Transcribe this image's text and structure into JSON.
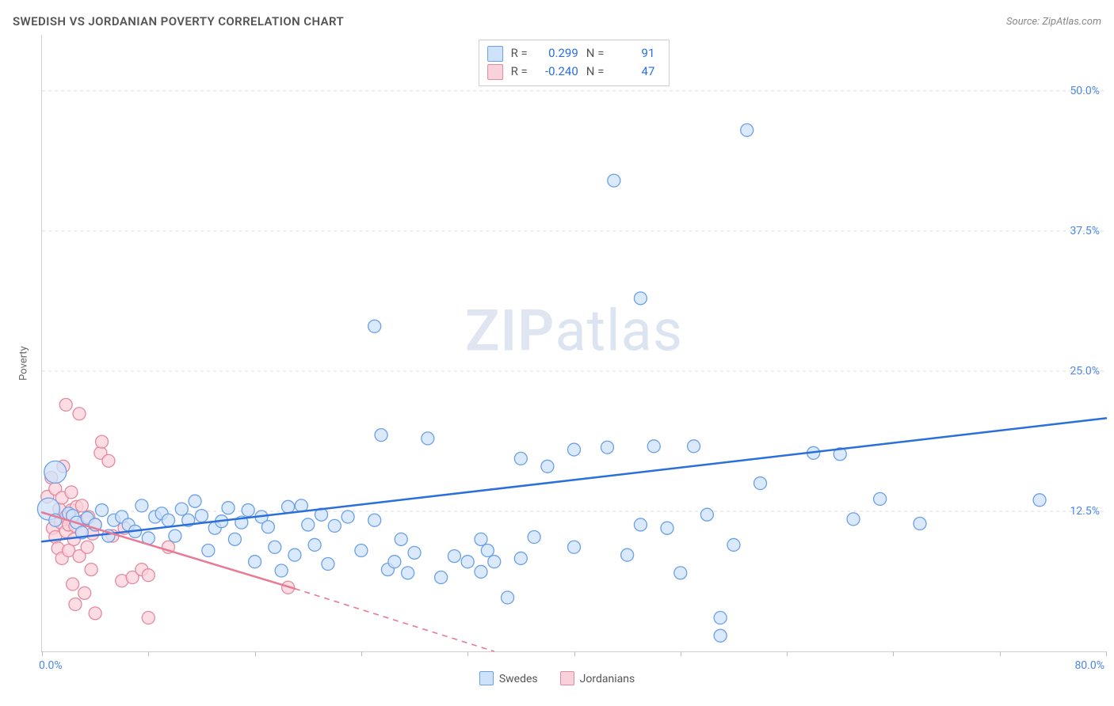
{
  "title": "SWEDISH VS JORDANIAN POVERTY CORRELATION CHART",
  "source_prefix": "Source: ",
  "source_name": "ZipAtlas.com",
  "ylabel": "Poverty",
  "watermark_a": "ZIP",
  "watermark_b": "atlas",
  "chart": {
    "type": "scatter",
    "background_color": "#ffffff",
    "grid_color": "#dcdcdc",
    "axis_color": "#d0d0d0",
    "xlim": [
      0,
      80
    ],
    "ylim": [
      0,
      55
    ],
    "x_origin_label": "0.0%",
    "x_max_label": "80.0%",
    "x_ticks": [
      0,
      8,
      16,
      24,
      32,
      40,
      48,
      56,
      64,
      72,
      80
    ],
    "y_gridlines": [
      {
        "value": 12.5,
        "label": "12.5%"
      },
      {
        "value": 25.0,
        "label": "25.0%"
      },
      {
        "value": 37.5,
        "label": "37.5%"
      },
      {
        "value": 50.0,
        "label": "50.0%"
      }
    ],
    "label_color": "#4a86e8",
    "label_fontsize": 14,
    "marker_radius": 8,
    "marker_radius_large": 14,
    "marker_stroke_width": 1.3,
    "line_width": 2.5,
    "series": {
      "swedes": {
        "label": "Swedes",
        "fill": "#cfe2fb",
        "stroke": "#6aa0e6",
        "fill_opacity": 0.75,
        "R_label": "R =",
        "R": "0.299",
        "N_label": "N =",
        "N": "91",
        "trend": {
          "color": "#2a6fdb",
          "x1": 0,
          "y1": 9.8,
          "x2": 80,
          "y2": 20.8,
          "dash": false
        },
        "points": [
          {
            "x": 1,
            "y": 16,
            "r": 14
          },
          {
            "x": 0.5,
            "y": 12.7,
            "r": 14
          },
          {
            "x": 1,
            "y": 11.7
          },
          {
            "x": 2,
            "y": 12.3
          },
          {
            "x": 2.3,
            "y": 12.1
          },
          {
            "x": 2.6,
            "y": 11.5
          },
          {
            "x": 3,
            "y": 10.6
          },
          {
            "x": 3.4,
            "y": 11.9
          },
          {
            "x": 4,
            "y": 11.3
          },
          {
            "x": 4.5,
            "y": 12.6
          },
          {
            "x": 5,
            "y": 10.3
          },
          {
            "x": 5.4,
            "y": 11.7
          },
          {
            "x": 6,
            "y": 12.0
          },
          {
            "x": 6.5,
            "y": 11.3
          },
          {
            "x": 7,
            "y": 10.7
          },
          {
            "x": 7.5,
            "y": 13.0
          },
          {
            "x": 8,
            "y": 10.1
          },
          {
            "x": 8.5,
            "y": 12.0
          },
          {
            "x": 9,
            "y": 12.3
          },
          {
            "x": 9.5,
            "y": 11.7
          },
          {
            "x": 10,
            "y": 10.3
          },
          {
            "x": 10.5,
            "y": 12.7
          },
          {
            "x": 11,
            "y": 11.7
          },
          {
            "x": 11.5,
            "y": 13.4
          },
          {
            "x": 12,
            "y": 12.1
          },
          {
            "x": 12.5,
            "y": 9.0
          },
          {
            "x": 13,
            "y": 11.0
          },
          {
            "x": 13.5,
            "y": 11.6
          },
          {
            "x": 14,
            "y": 12.8
          },
          {
            "x": 14.5,
            "y": 10.0
          },
          {
            "x": 15,
            "y": 11.5
          },
          {
            "x": 15.5,
            "y": 12.6
          },
          {
            "x": 16,
            "y": 8.0
          },
          {
            "x": 16.5,
            "y": 12.0
          },
          {
            "x": 17,
            "y": 11.1
          },
          {
            "x": 17.5,
            "y": 9.3
          },
          {
            "x": 18,
            "y": 7.2
          },
          {
            "x": 18.5,
            "y": 12.9
          },
          {
            "x": 19,
            "y": 8.6
          },
          {
            "x": 19.5,
            "y": 13.0
          },
          {
            "x": 20,
            "y": 11.3
          },
          {
            "x": 20.5,
            "y": 9.5
          },
          {
            "x": 21,
            "y": 12.2
          },
          {
            "x": 21.5,
            "y": 7.8
          },
          {
            "x": 22,
            "y": 11.2
          },
          {
            "x": 23,
            "y": 12.0
          },
          {
            "x": 24,
            "y": 9.0
          },
          {
            "x": 25,
            "y": 29.0
          },
          {
            "x": 25,
            "y": 11.7
          },
          {
            "x": 25.5,
            "y": 19.3
          },
          {
            "x": 26,
            "y": 7.3
          },
          {
            "x": 26.5,
            "y": 8.0
          },
          {
            "x": 27,
            "y": 10.0
          },
          {
            "x": 27.5,
            "y": 7.0
          },
          {
            "x": 28,
            "y": 8.8
          },
          {
            "x": 29,
            "y": 19.0
          },
          {
            "x": 30,
            "y": 6.6
          },
          {
            "x": 31,
            "y": 8.5
          },
          {
            "x": 32,
            "y": 8.0
          },
          {
            "x": 33,
            "y": 7.1
          },
          {
            "x": 33,
            "y": 10.0
          },
          {
            "x": 33.5,
            "y": 9.0
          },
          {
            "x": 34,
            "y": 8.0
          },
          {
            "x": 35,
            "y": 4.8
          },
          {
            "x": 36,
            "y": 8.3
          },
          {
            "x": 36,
            "y": 17.2
          },
          {
            "x": 37,
            "y": 10.2
          },
          {
            "x": 38,
            "y": 16.5
          },
          {
            "x": 40,
            "y": 9.3
          },
          {
            "x": 40,
            "y": 18.0
          },
          {
            "x": 42.5,
            "y": 18.2
          },
          {
            "x": 43,
            "y": 42.0
          },
          {
            "x": 44,
            "y": 8.6
          },
          {
            "x": 45,
            "y": 31.5
          },
          {
            "x": 45,
            "y": 11.3
          },
          {
            "x": 46,
            "y": 18.3
          },
          {
            "x": 47,
            "y": 11.0
          },
          {
            "x": 48,
            "y": 7.0
          },
          {
            "x": 49,
            "y": 18.3
          },
          {
            "x": 50,
            "y": 12.2
          },
          {
            "x": 51,
            "y": 3.0
          },
          {
            "x": 51,
            "y": 1.4
          },
          {
            "x": 52,
            "y": 9.5
          },
          {
            "x": 53,
            "y": 46.5
          },
          {
            "x": 54,
            "y": 15.0
          },
          {
            "x": 58,
            "y": 17.7
          },
          {
            "x": 60,
            "y": 17.6
          },
          {
            "x": 61,
            "y": 11.8
          },
          {
            "x": 63,
            "y": 13.6
          },
          {
            "x": 66,
            "y": 11.4
          },
          {
            "x": 75,
            "y": 13.5
          }
        ]
      },
      "jordanians": {
        "label": "Jordanians",
        "fill": "#f9d1da",
        "stroke": "#e38aa0",
        "fill_opacity": 0.75,
        "R_label": "R =",
        "R": "-0.240",
        "N_label": "N =",
        "N": "47",
        "trend_solid": {
          "color": "#e77a94",
          "x1": 0,
          "y1": 12.4,
          "x2": 19,
          "y2": 5.6
        },
        "trend_dash": {
          "color": "#e77a94",
          "x1": 19,
          "y1": 5.6,
          "x2": 34,
          "y2": 0.0
        },
        "points": [
          {
            "x": 0.4,
            "y": 13.8
          },
          {
            "x": 0.7,
            "y": 15.5
          },
          {
            "x": 0.8,
            "y": 11.0
          },
          {
            "x": 1.0,
            "y": 14.5
          },
          {
            "x": 1.0,
            "y": 10.2
          },
          {
            "x": 1.2,
            "y": 9.2
          },
          {
            "x": 1.3,
            "y": 12.7
          },
          {
            "x": 1.4,
            "y": 11.5
          },
          {
            "x": 1.5,
            "y": 13.7
          },
          {
            "x": 1.5,
            "y": 8.3
          },
          {
            "x": 1.6,
            "y": 16.5
          },
          {
            "x": 1.8,
            "y": 12.0
          },
          {
            "x": 1.8,
            "y": 10.7
          },
          {
            "x": 1.8,
            "y": 22.0
          },
          {
            "x": 2.0,
            "y": 11.3
          },
          {
            "x": 2.0,
            "y": 9.0
          },
          {
            "x": 2.2,
            "y": 12.6
          },
          {
            "x": 2.2,
            "y": 14.2
          },
          {
            "x": 2.3,
            "y": 6.0
          },
          {
            "x": 2.4,
            "y": 10.0
          },
          {
            "x": 2.5,
            "y": 11.2
          },
          {
            "x": 2.5,
            "y": 4.2
          },
          {
            "x": 2.6,
            "y": 12.9
          },
          {
            "x": 2.8,
            "y": 8.5
          },
          {
            "x": 2.8,
            "y": 21.2
          },
          {
            "x": 3.0,
            "y": 13.0
          },
          {
            "x": 3.0,
            "y": 10.6
          },
          {
            "x": 3.2,
            "y": 11.7
          },
          {
            "x": 3.2,
            "y": 5.2
          },
          {
            "x": 3.4,
            "y": 9.3
          },
          {
            "x": 3.5,
            "y": 12.0
          },
          {
            "x": 3.7,
            "y": 7.3
          },
          {
            "x": 3.8,
            "y": 10.5
          },
          {
            "x": 4.0,
            "y": 11.3
          },
          {
            "x": 4.0,
            "y": 3.4
          },
          {
            "x": 4.4,
            "y": 17.7
          },
          {
            "x": 4.5,
            "y": 18.7
          },
          {
            "x": 5.0,
            "y": 17.0
          },
          {
            "x": 5.3,
            "y": 10.3
          },
          {
            "x": 6.0,
            "y": 6.3
          },
          {
            "x": 6.2,
            "y": 11.0
          },
          {
            "x": 6.8,
            "y": 6.6
          },
          {
            "x": 7.5,
            "y": 7.3
          },
          {
            "x": 8.0,
            "y": 3.0
          },
          {
            "x": 8.0,
            "y": 6.8
          },
          {
            "x": 9.5,
            "y": 9.3
          },
          {
            "x": 18.5,
            "y": 5.7
          }
        ]
      }
    },
    "legend": {
      "swatch_size": 18,
      "text_color": "#555555"
    }
  }
}
